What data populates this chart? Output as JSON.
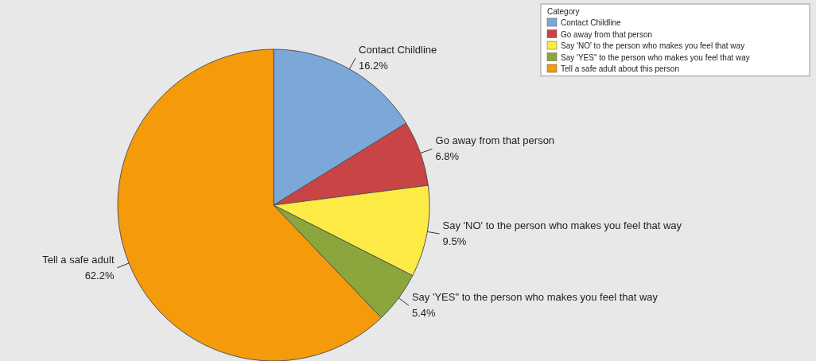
{
  "chart_data": {
    "type": "pie",
    "legend_title": "Category",
    "legend": "top right",
    "categories": [
      "Contact Childline",
      "Go away from that person",
      "Say 'NO' to the person who makes you feel that way",
      "Say 'YES\" to the person who makes you feel that way",
      "Tell a safe adult about this person"
    ],
    "values": [
      16.2,
      6.8,
      9.5,
      5.4,
      62.2
    ],
    "colors": [
      "#7ba7d9",
      "#c94444",
      "#fdea44",
      "#8aa63c",
      "#f59a0a"
    ],
    "value_labels": [
      "Contact Childline\n16.2%",
      "Go away from that person\n6.8%",
      "Say 'NO' to the person who makes you feel that way\n9.5%",
      "Say 'YES\" to the person who makes you feel that way\n5.4%",
      "Tell a safe adult\n62.2%"
    ]
  }
}
